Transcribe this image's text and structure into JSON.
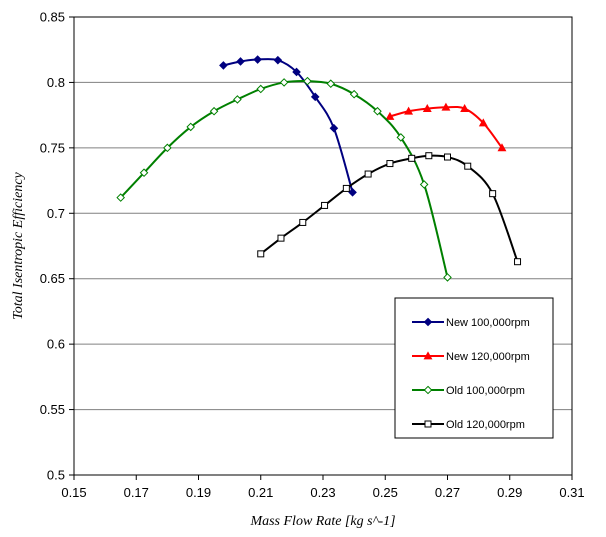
{
  "chart_data": {
    "type": "line",
    "title": "",
    "xlabel": "Mass Flow Rate [kg s^-1]",
    "ylabel": "Total Isentropic Efficiency",
    "xlim": [
      0.15,
      0.31
    ],
    "ylim": [
      0.5,
      0.85
    ],
    "xticks": [
      0.15,
      0.17,
      0.19,
      0.21,
      0.23,
      0.25,
      0.27,
      0.29,
      0.31
    ],
    "yticks": [
      0.5,
      0.55,
      0.6,
      0.65,
      0.7,
      0.75,
      0.8,
      0.85
    ],
    "xtick_labels": [
      "0.15",
      "0.17",
      "0.19",
      "0.21",
      "0.23",
      "0.25",
      "0.27",
      "0.29",
      "0.31"
    ],
    "ytick_labels": [
      "0.5",
      "0.55",
      "0.6",
      "0.65",
      "0.7",
      "0.75",
      "0.8",
      "0.85"
    ],
    "grid": "horizontal",
    "legend_position": "lower-right",
    "series": [
      {
        "name": "New 100,000rpm",
        "color": "#000080",
        "marker": "diamond-filled",
        "x": [
          0.198,
          0.2035,
          0.209,
          0.2155,
          0.2215,
          0.2275,
          0.2335,
          0.2395
        ],
        "y": [
          0.813,
          0.816,
          0.8175,
          0.817,
          0.808,
          0.789,
          0.765,
          0.716
        ]
      },
      {
        "name": "New 120,000rpm",
        "color": "#ff0000",
        "marker": "triangle-filled",
        "x": [
          0.2515,
          0.2575,
          0.2635,
          0.2695,
          0.2755,
          0.2815,
          0.2875
        ],
        "y": [
          0.774,
          0.778,
          0.78,
          0.781,
          0.78,
          0.769,
          0.75
        ]
      },
      {
        "name": "Old 100,000rpm",
        "color": "#008000",
        "marker": "diamond-open",
        "x": [
          0.165,
          0.1725,
          0.18,
          0.1875,
          0.195,
          0.2025,
          0.21,
          0.2175,
          0.225,
          0.2325,
          0.24,
          0.2475,
          0.255,
          0.2625,
          0.27
        ],
        "y": [
          0.712,
          0.731,
          0.75,
          0.766,
          0.778,
          0.787,
          0.795,
          0.8,
          0.801,
          0.799,
          0.791,
          0.778,
          0.758,
          0.722,
          0.651
        ]
      },
      {
        "name": "Old 120,000rpm",
        "color": "#000000",
        "marker": "square-open",
        "x": [
          0.21,
          0.2165,
          0.2235,
          0.2305,
          0.2375,
          0.2445,
          0.2515,
          0.2585,
          0.264,
          0.27,
          0.2765,
          0.2845,
          0.2925
        ],
        "y": [
          0.669,
          0.681,
          0.693,
          0.706,
          0.719,
          0.73,
          0.738,
          0.742,
          0.744,
          0.743,
          0.736,
          0.715,
          0.663
        ]
      }
    ]
  }
}
